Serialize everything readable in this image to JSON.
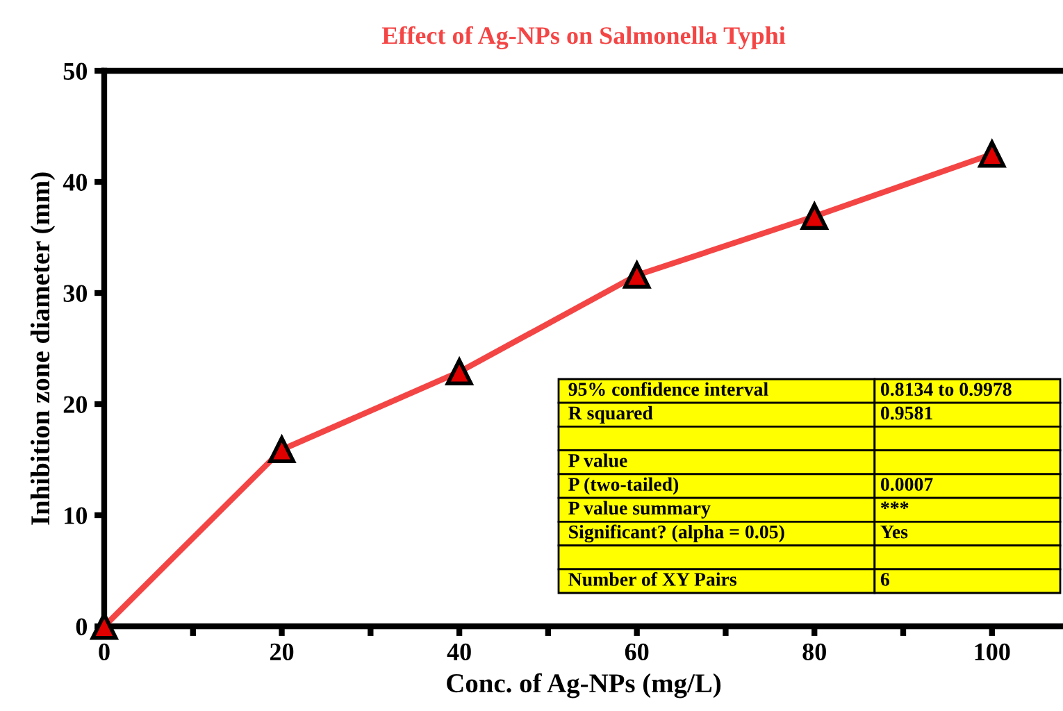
{
  "chart_data": {
    "type": "line",
    "title": "Effect of Ag-NPs on Salmonella Typhi",
    "xlabel": "Conc. of Ag-NPs (mg/L)",
    "ylabel": "Inhibition zone diameter (mm)",
    "x": [
      0,
      20,
      40,
      60,
      80,
      100
    ],
    "series": [
      {
        "color": "#f44545",
        "values": [
          0,
          15.9,
          22.9,
          31.6,
          36.9,
          42.5
        ]
      }
    ],
    "marker": "triangle",
    "line_style": "solid",
    "grid": false,
    "legend": false,
    "xlim": [
      0,
      108
    ],
    "ylim": [
      0,
      50
    ],
    "xticks": [
      0,
      {
        "value": 10,
        "label": null
      },
      20,
      {
        "value": 30,
        "label": null
      },
      40,
      {
        "value": 50,
        "label": null
      },
      60,
      {
        "value": 70,
        "label": null
      },
      80,
      {
        "value": 90,
        "label": null
      },
      100
    ],
    "yticks": [
      0,
      10,
      20,
      30,
      40,
      50
    ],
    "annotations": [
      "95% confidence interval",
      "0.8134 to 0.9978",
      "R squared",
      "0.9581",
      null,
      null,
      "P value",
      null,
      "P (two-tailed)",
      "0.0007",
      "P value summary",
      "***",
      "Significant? (alpha = 0.05)",
      "Yes",
      null,
      null,
      "Number of XY Pairs",
      "6"
    ]
  }
}
